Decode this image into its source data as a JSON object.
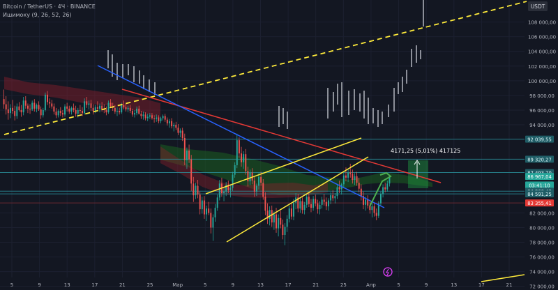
{
  "header": {
    "symbol": "Bitcoin / TetherUS · 4Ч · BINANCE",
    "indicator": "Ишимоку (9, 26, 52, 26)"
  },
  "colors": {
    "background": "#131722",
    "grid": "#1c2030",
    "up": "#26a69a",
    "down": "#ef5350",
    "candle_upper": "#b2b5be",
    "ichimoku_bull": "#2e7d32",
    "ichimoku_bear": "#8b1e2c",
    "trendline_red": "#e53935",
    "trendline_blue": "#2962ff",
    "trendline_yellow": "#ffeb3b",
    "level_line": "#2a8f9a"
  },
  "chart_data": {
    "type": "candlestick",
    "title": "Bitcoin / TetherUS · 4Ч · BINANCE",
    "indicator": "Ишимоку (9, 26, 52, 26)",
    "currency": "USDT",
    "ylim": [
      71500,
      111000
    ],
    "y_ticks": [
      72000,
      74000,
      76000,
      78000,
      80000,
      82000,
      94000,
      96000,
      98000,
      100000,
      102000,
      104000,
      106000,
      108000
    ],
    "y_tick_labels": [
      "72 000,00",
      "74 000,00",
      "76 000,00",
      "78 000,00",
      "80 000,00",
      "82 000,00",
      "94 000,00",
      "96 000,00",
      "98 000,00",
      "100 000,00",
      "102 000,00",
      "104 000,00",
      "106 000,00",
      "108 000,00"
    ],
    "x_labels": [
      "5",
      "9",
      "13",
      "17",
      "21",
      "25",
      "Мар",
      "5",
      "9",
      "13",
      "17",
      "21",
      "25",
      "Апр",
      "5",
      "9",
      "13",
      "17",
      "21"
    ],
    "price_labels": [
      {
        "value": 92039.55,
        "text": "92 039,55",
        "kind": "level"
      },
      {
        "value": 89320.27,
        "text": "89 320,27",
        "kind": "level"
      },
      {
        "value": 87493.7,
        "text": "87 493,70",
        "kind": "level"
      },
      {
        "value": 86967.04,
        "text": "86 967,04",
        "kind": "current"
      },
      {
        "value": 85800,
        "text": "03:41:10",
        "kind": "countdown"
      },
      {
        "value": 84960.42,
        "text": "84 960,42",
        "kind": "level"
      },
      {
        "value": 84591.25,
        "text": "84 591,25",
        "kind": "level"
      },
      {
        "value": 83355.41,
        "text": "83 355,41",
        "kind": "red"
      }
    ],
    "annotation": "4171,25 (5,01%) 417125",
    "candles": [
      {
        "o": 97500,
        "h": 98800,
        "l": 96200,
        "c": 96800
      },
      {
        "o": 96800,
        "h": 97900,
        "l": 95400,
        "c": 96100
      },
      {
        "o": 96100,
        "h": 97200,
        "l": 94700,
        "c": 95600
      },
      {
        "o": 95600,
        "h": 96800,
        "l": 94900,
        "c": 96300
      },
      {
        "o": 96300,
        "h": 97400,
        "l": 95500,
        "c": 95900
      },
      {
        "o": 95900,
        "h": 96600,
        "l": 94600,
        "c": 95200
      },
      {
        "o": 95200,
        "h": 96900,
        "l": 94800,
        "c": 96500
      },
      {
        "o": 96500,
        "h": 97100,
        "l": 95800,
        "c": 96000
      },
      {
        "o": 96000,
        "h": 96700,
        "l": 95100,
        "c": 95700
      },
      {
        "o": 95700,
        "h": 97800,
        "l": 95300,
        "c": 97300
      },
      {
        "o": 97300,
        "h": 97900,
        "l": 96200,
        "c": 96600
      },
      {
        "o": 96600,
        "h": 96900,
        "l": 95600,
        "c": 96200
      },
      {
        "o": 96200,
        "h": 96800,
        "l": 95500,
        "c": 96100
      },
      {
        "o": 96100,
        "h": 97300,
        "l": 95900,
        "c": 97000
      },
      {
        "o": 97000,
        "h": 97500,
        "l": 95800,
        "c": 96200
      },
      {
        "o": 96200,
        "h": 96900,
        "l": 95700,
        "c": 96700
      },
      {
        "o": 96700,
        "h": 97200,
        "l": 95900,
        "c": 96100
      },
      {
        "o": 96100,
        "h": 96500,
        "l": 94800,
        "c": 95300
      },
      {
        "o": 95300,
        "h": 96300,
        "l": 95000,
        "c": 96000
      },
      {
        "o": 96000,
        "h": 98400,
        "l": 95800,
        "c": 98100
      },
      {
        "o": 98100,
        "h": 98600,
        "l": 96700,
        "c": 97100
      },
      {
        "o": 97100,
        "h": 97600,
        "l": 96300,
        "c": 96900
      },
      {
        "o": 96900,
        "h": 97400,
        "l": 96200,
        "c": 96500
      },
      {
        "o": 96500,
        "h": 96900,
        "l": 95400,
        "c": 95800
      },
      {
        "o": 95800,
        "h": 96300,
        "l": 94900,
        "c": 95300
      },
      {
        "o": 95300,
        "h": 96100,
        "l": 95000,
        "c": 95900
      },
      {
        "o": 95900,
        "h": 96400,
        "l": 95200,
        "c": 95600
      },
      {
        "o": 95600,
        "h": 96000,
        "l": 95000,
        "c": 95400
      },
      {
        "o": 95400,
        "h": 96800,
        "l": 95100,
        "c": 96500
      },
      {
        "o": 96500,
        "h": 97000,
        "l": 95800,
        "c": 96200
      },
      {
        "o": 96200,
        "h": 96600,
        "l": 95500,
        "c": 95800
      },
      {
        "o": 95800,
        "h": 96500,
        "l": 95400,
        "c": 96300
      },
      {
        "o": 96300,
        "h": 96900,
        "l": 95700,
        "c": 96000
      },
      {
        "o": 96000,
        "h": 96600,
        "l": 95100,
        "c": 95500
      },
      {
        "o": 95500,
        "h": 96300,
        "l": 95000,
        "c": 96000
      },
      {
        "o": 96000,
        "h": 96700,
        "l": 95500,
        "c": 95900
      },
      {
        "o": 95900,
        "h": 96400,
        "l": 95200,
        "c": 95600
      },
      {
        "o": 95600,
        "h": 97600,
        "l": 95400,
        "c": 97200
      },
      {
        "o": 97200,
        "h": 97800,
        "l": 96300,
        "c": 96700
      },
      {
        "o": 96700,
        "h": 97300,
        "l": 96100,
        "c": 96900
      },
      {
        "o": 96900,
        "h": 97400,
        "l": 95900,
        "c": 96300
      },
      {
        "o": 96300,
        "h": 96800,
        "l": 95400,
        "c": 95900
      },
      {
        "o": 95900,
        "h": 96700,
        "l": 95600,
        "c": 96400
      },
      {
        "o": 96400,
        "h": 97200,
        "l": 95900,
        "c": 96200
      },
      {
        "o": 96200,
        "h": 96900,
        "l": 95700,
        "c": 96600
      },
      {
        "o": 96600,
        "h": 97100,
        "l": 95800,
        "c": 96100
      },
      {
        "o": 96100,
        "h": 96800,
        "l": 95600,
        "c": 96000
      },
      {
        "o": 96000,
        "h": 96500,
        "l": 95300,
        "c": 95700
      },
      {
        "o": 95700,
        "h": 97300,
        "l": 95500,
        "c": 97000
      },
      {
        "o": 97000,
        "h": 97500,
        "l": 96300,
        "c": 96500
      },
      {
        "o": 96500,
        "h": 97000,
        "l": 95900,
        "c": 96300
      },
      {
        "o": 96300,
        "h": 96700,
        "l": 95500,
        "c": 95800
      },
      {
        "o": 95800,
        "h": 96400,
        "l": 95200,
        "c": 95900
      },
      {
        "o": 95900,
        "h": 96300,
        "l": 95400,
        "c": 95700
      },
      {
        "o": 95700,
        "h": 97000,
        "l": 95500,
        "c": 96700
      },
      {
        "o": 96700,
        "h": 97300,
        "l": 96100,
        "c": 96400
      },
      {
        "o": 96400,
        "h": 96900,
        "l": 95800,
        "c": 96100
      },
      {
        "o": 96100,
        "h": 96600,
        "l": 95700,
        "c": 96300
      },
      {
        "o": 96300,
        "h": 96700,
        "l": 95600,
        "c": 95900
      },
      {
        "o": 95900,
        "h": 96200,
        "l": 95100,
        "c": 95400
      },
      {
        "o": 95400,
        "h": 96000,
        "l": 95000,
        "c": 95600
      },
      {
        "o": 95600,
        "h": 96500,
        "l": 95300,
        "c": 96200
      },
      {
        "o": 96200,
        "h": 96600,
        "l": 95400,
        "c": 95500
      },
      {
        "o": 95500,
        "h": 95900,
        "l": 94800,
        "c": 95200
      },
      {
        "o": 95200,
        "h": 95800,
        "l": 94700,
        "c": 95400
      },
      {
        "o": 95400,
        "h": 95700,
        "l": 94600,
        "c": 94900
      },
      {
        "o": 94900,
        "h": 95500,
        "l": 94500,
        "c": 95100
      },
      {
        "o": 95100,
        "h": 95600,
        "l": 94800,
        "c": 95300
      },
      {
        "o": 95300,
        "h": 95600,
        "l": 94700,
        "c": 94900
      },
      {
        "o": 94900,
        "h": 95300,
        "l": 94300,
        "c": 94800
      },
      {
        "o": 94800,
        "h": 95400,
        "l": 94400,
        "c": 95000
      },
      {
        "o": 95000,
        "h": 95300,
        "l": 94200,
        "c": 94500
      },
      {
        "o": 94500,
        "h": 95100,
        "l": 94200,
        "c": 94900
      },
      {
        "o": 94900,
        "h": 95400,
        "l": 94600,
        "c": 95200
      },
      {
        "o": 95200,
        "h": 95500,
        "l": 94400,
        "c": 94700
      },
      {
        "o": 94700,
        "h": 95000,
        "l": 93900,
        "c": 94200
      },
      {
        "o": 94200,
        "h": 94800,
        "l": 93600,
        "c": 94500
      },
      {
        "o": 94500,
        "h": 94900,
        "l": 93500,
        "c": 93800
      },
      {
        "o": 93800,
        "h": 94300,
        "l": 93100,
        "c": 94000
      },
      {
        "o": 94000,
        "h": 94400,
        "l": 93300,
        "c": 93600
      },
      {
        "o": 93600,
        "h": 94100,
        "l": 92600,
        "c": 92900
      },
      {
        "o": 92900,
        "h": 93500,
        "l": 92300,
        "c": 93200
      },
      {
        "o": 93200,
        "h": 93600,
        "l": 91800,
        "c": 92200
      },
      {
        "o": 92200,
        "h": 92800,
        "l": 88500,
        "c": 89200
      },
      {
        "o": 89200,
        "h": 90900,
        "l": 88000,
        "c": 90500
      },
      {
        "o": 90500,
        "h": 91300,
        "l": 88800,
        "c": 89300
      },
      {
        "o": 89300,
        "h": 89900,
        "l": 85000,
        "c": 86000
      },
      {
        "o": 86000,
        "h": 86900,
        "l": 83500,
        "c": 84400
      },
      {
        "o": 84400,
        "h": 86100,
        "l": 83900,
        "c": 85700
      },
      {
        "o": 85700,
        "h": 86500,
        "l": 84000,
        "c": 84500
      },
      {
        "o": 84500,
        "h": 84900,
        "l": 81800,
        "c": 82500
      },
      {
        "o": 82500,
        "h": 84200,
        "l": 81900,
        "c": 83700
      },
      {
        "o": 83700,
        "h": 84300,
        "l": 81200,
        "c": 81800
      },
      {
        "o": 81800,
        "h": 83000,
        "l": 80900,
        "c": 82600
      },
      {
        "o": 82600,
        "h": 83500,
        "l": 81700,
        "c": 82000
      },
      {
        "o": 82000,
        "h": 82600,
        "l": 79200,
        "c": 80000
      },
      {
        "o": 80000,
        "h": 81800,
        "l": 78200,
        "c": 81400
      },
      {
        "o": 81400,
        "h": 83200,
        "l": 80800,
        "c": 82700
      },
      {
        "o": 82700,
        "h": 84500,
        "l": 82300,
        "c": 84100
      },
      {
        "o": 84100,
        "h": 86500,
        "l": 83700,
        "c": 86000
      },
      {
        "o": 86000,
        "h": 86800,
        "l": 84200,
        "c": 84700
      },
      {
        "o": 84700,
        "h": 85400,
        "l": 83600,
        "c": 84900
      },
      {
        "o": 84900,
        "h": 86200,
        "l": 84300,
        "c": 85800
      },
      {
        "o": 85800,
        "h": 86400,
        "l": 84700,
        "c": 85100
      },
      {
        "o": 85100,
        "h": 85800,
        "l": 84100,
        "c": 85400
      },
      {
        "o": 85400,
        "h": 87600,
        "l": 85000,
        "c": 87200
      },
      {
        "o": 87200,
        "h": 88900,
        "l": 86800,
        "c": 88500
      },
      {
        "o": 88500,
        "h": 92800,
        "l": 88100,
        "c": 91900
      },
      {
        "o": 91900,
        "h": 92300,
        "l": 89500,
        "c": 90100
      },
      {
        "o": 90100,
        "h": 91000,
        "l": 88300,
        "c": 88900
      },
      {
        "o": 88900,
        "h": 90400,
        "l": 88000,
        "c": 90000
      },
      {
        "o": 90000,
        "h": 90700,
        "l": 87200,
        "c": 87700
      },
      {
        "o": 87700,
        "h": 88300,
        "l": 85600,
        "c": 86300
      },
      {
        "o": 86300,
        "h": 87900,
        "l": 85800,
        "c": 87500
      },
      {
        "o": 87500,
        "h": 88100,
        "l": 85900,
        "c": 86400
      },
      {
        "o": 86400,
        "h": 86900,
        "l": 84200,
        "c": 84900
      },
      {
        "o": 84900,
        "h": 86000,
        "l": 84300,
        "c": 85700
      },
      {
        "o": 85700,
        "h": 87400,
        "l": 85200,
        "c": 86900
      },
      {
        "o": 86900,
        "h": 87600,
        "l": 85700,
        "c": 86100
      },
      {
        "o": 86100,
        "h": 86600,
        "l": 83800,
        "c": 84200
      },
      {
        "o": 84200,
        "h": 84800,
        "l": 81700,
        "c": 82300
      },
      {
        "o": 82300,
        "h": 83300,
        "l": 80500,
        "c": 81200
      },
      {
        "o": 81200,
        "h": 82900,
        "l": 80300,
        "c": 82400
      },
      {
        "o": 82400,
        "h": 83000,
        "l": 80100,
        "c": 80700
      },
      {
        "o": 80700,
        "h": 82200,
        "l": 79700,
        "c": 81800
      },
      {
        "o": 81800,
        "h": 82700,
        "l": 79300,
        "c": 79900
      },
      {
        "o": 79900,
        "h": 81800,
        "l": 78800,
        "c": 81300
      },
      {
        "o": 81300,
        "h": 82300,
        "l": 79900,
        "c": 80400
      },
      {
        "o": 80400,
        "h": 81100,
        "l": 78400,
        "c": 79000
      },
      {
        "o": 79000,
        "h": 80600,
        "l": 77600,
        "c": 80100
      },
      {
        "o": 80100,
        "h": 81700,
        "l": 79400,
        "c": 81200
      },
      {
        "o": 81200,
        "h": 83000,
        "l": 80700,
        "c": 82600
      },
      {
        "o": 82600,
        "h": 83400,
        "l": 81100,
        "c": 81500
      },
      {
        "o": 81500,
        "h": 83900,
        "l": 81000,
        "c": 83400
      },
      {
        "o": 83400,
        "h": 84700,
        "l": 82500,
        "c": 84100
      },
      {
        "o": 84100,
        "h": 84600,
        "l": 82100,
        "c": 82600
      },
      {
        "o": 82600,
        "h": 84000,
        "l": 82000,
        "c": 83600
      },
      {
        "o": 83600,
        "h": 84100,
        "l": 81900,
        "c": 82400
      },
      {
        "o": 82400,
        "h": 83500,
        "l": 81800,
        "c": 83100
      },
      {
        "o": 83100,
        "h": 84600,
        "l": 82700,
        "c": 84200
      },
      {
        "o": 84200,
        "h": 84800,
        "l": 82800,
        "c": 83200
      },
      {
        "o": 83200,
        "h": 83900,
        "l": 82100,
        "c": 82700
      },
      {
        "o": 82700,
        "h": 84300,
        "l": 82300,
        "c": 83900
      },
      {
        "o": 83900,
        "h": 84500,
        "l": 82900,
        "c": 83300
      },
      {
        "o": 83300,
        "h": 83800,
        "l": 81900,
        "c": 82500
      },
      {
        "o": 82500,
        "h": 83600,
        "l": 81800,
        "c": 83100
      },
      {
        "o": 83100,
        "h": 84200,
        "l": 82600,
        "c": 83800
      },
      {
        "o": 83800,
        "h": 84600,
        "l": 83000,
        "c": 83500
      },
      {
        "o": 83500,
        "h": 84100,
        "l": 82400,
        "c": 82900
      },
      {
        "o": 82900,
        "h": 84000,
        "l": 82300,
        "c": 83700
      },
      {
        "o": 83700,
        "h": 84800,
        "l": 83200,
        "c": 84400
      },
      {
        "o": 84400,
        "h": 85100,
        "l": 83600,
        "c": 84000
      },
      {
        "o": 84000,
        "h": 84700,
        "l": 83300,
        "c": 84300
      },
      {
        "o": 84300,
        "h": 85900,
        "l": 83900,
        "c": 85500
      },
      {
        "o": 85500,
        "h": 86400,
        "l": 84700,
        "c": 85200
      },
      {
        "o": 85200,
        "h": 86100,
        "l": 84500,
        "c": 85900
      },
      {
        "o": 85900,
        "h": 87500,
        "l": 85400,
        "c": 87100
      },
      {
        "o": 87100,
        "h": 88200,
        "l": 86300,
        "c": 86800
      },
      {
        "o": 86800,
        "h": 87900,
        "l": 86200,
        "c": 87500
      },
      {
        "o": 87500,
        "h": 88700,
        "l": 86800,
        "c": 87300
      },
      {
        "o": 87300,
        "h": 87900,
        "l": 86000,
        "c": 86500
      },
      {
        "o": 86500,
        "h": 87400,
        "l": 85800,
        "c": 87000
      },
      {
        "o": 87000,
        "h": 87600,
        "l": 85700,
        "c": 86100
      },
      {
        "o": 86100,
        "h": 86800,
        "l": 84800,
        "c": 85300
      },
      {
        "o": 85300,
        "h": 85900,
        "l": 83700,
        "c": 84300
      },
      {
        "o": 84300,
        "h": 84900,
        "l": 82500,
        "c": 83100
      },
      {
        "o": 83100,
        "h": 84200,
        "l": 82300,
        "c": 83800
      },
      {
        "o": 83800,
        "h": 84400,
        "l": 82600,
        "c": 83000
      },
      {
        "o": 83000,
        "h": 83600,
        "l": 81900,
        "c": 82400
      },
      {
        "o": 82400,
        "h": 83300,
        "l": 81400,
        "c": 82900
      },
      {
        "o": 82900,
        "h": 83400,
        "l": 81500,
        "c": 82000
      },
      {
        "o": 82000,
        "h": 82600,
        "l": 81000,
        "c": 81600
      },
      {
        "o": 81600,
        "h": 83600,
        "l": 81300,
        "c": 83300
      },
      {
        "o": 83300,
        "h": 84900,
        "l": 82900,
        "c": 84600
      },
      {
        "o": 84600,
        "h": 85900,
        "l": 84100,
        "c": 85500
      },
      {
        "o": 85500,
        "h": 86100,
        "l": 84800,
        "c": 85200
      },
      {
        "o": 85200,
        "h": 86400,
        "l": 84900,
        "c": 86000
      },
      {
        "o": 86000,
        "h": 87200,
        "l": 85600,
        "c": 86967.04
      }
    ],
    "future_upper_wicks": [
      {
        "x": 0.5,
        "h": 92800,
        "l": 91900
      },
      {
        "x": 1.5,
        "h": 93600,
        "l": 92500
      },
      {
        "x": 2.5,
        "h": 93100,
        "l": 92300
      },
      {
        "x": 3.5,
        "h": 94500,
        "l": 93200
      },
      {
        "x": 4.5,
        "h": 93800,
        "l": 92900
      },
      {
        "x": 5.5,
        "h": 92400,
        "l": 91800
      },
      {
        "x": 6.5,
        "h": 93500,
        "l": 92500
      }
    ],
    "grid": true,
    "legend": "none"
  }
}
